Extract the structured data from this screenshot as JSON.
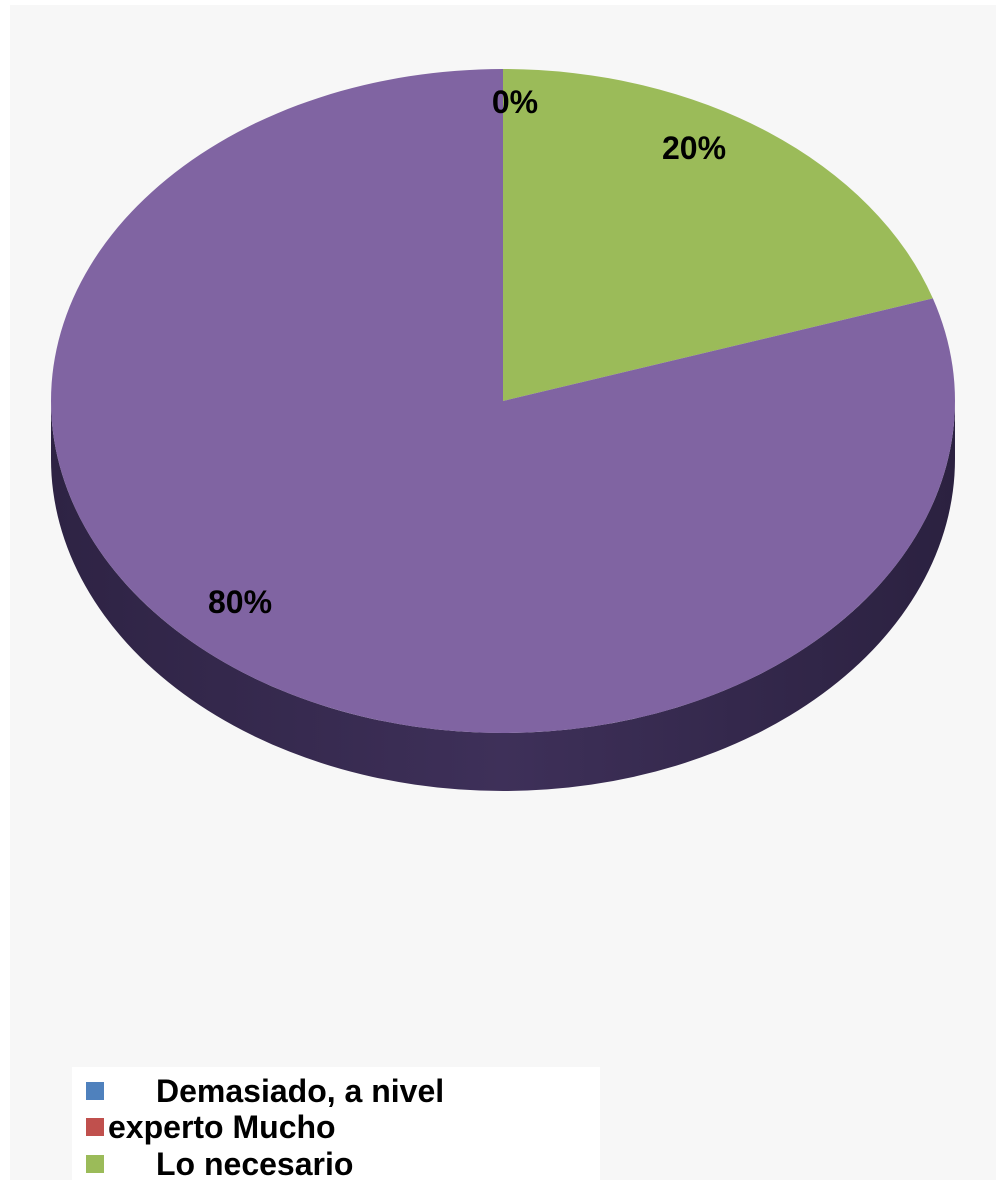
{
  "chart_data": {
    "type": "pie",
    "is_3d": true,
    "start_angle_deg": 0,
    "direction": "clockwise",
    "slices": [
      {
        "label": "Demasiado, a nivel experto",
        "value": 0,
        "data_label": "0%",
        "color": "#4f81bd"
      },
      {
        "label": "Mucho",
        "value": 0,
        "data_label": "0%",
        "color": "#c0504d"
      },
      {
        "label": "Lo necesario",
        "value": 20,
        "data_label": "20%",
        "color": "#9bbb59"
      },
      {
        "label": "",
        "value": 80,
        "data_label": "80%",
        "color": "#8064a2"
      }
    ],
    "visible_data_labels": [
      "0%",
      "20%",
      "80%"
    ],
    "legend": {
      "placement": "bottom-left",
      "lines": [
        {
          "text": "Demasiado, a nivel",
          "color": "#4f81bd",
          "indent": true
        },
        {
          "text": "experto Mucho",
          "color": "#c0504d",
          "indent": false
        },
        {
          "text": "Lo necesario",
          "color": "#9bbb59",
          "indent": true
        }
      ]
    },
    "colors": {
      "purple_side": "#3b2d55",
      "background": "#f7f7f7"
    }
  }
}
